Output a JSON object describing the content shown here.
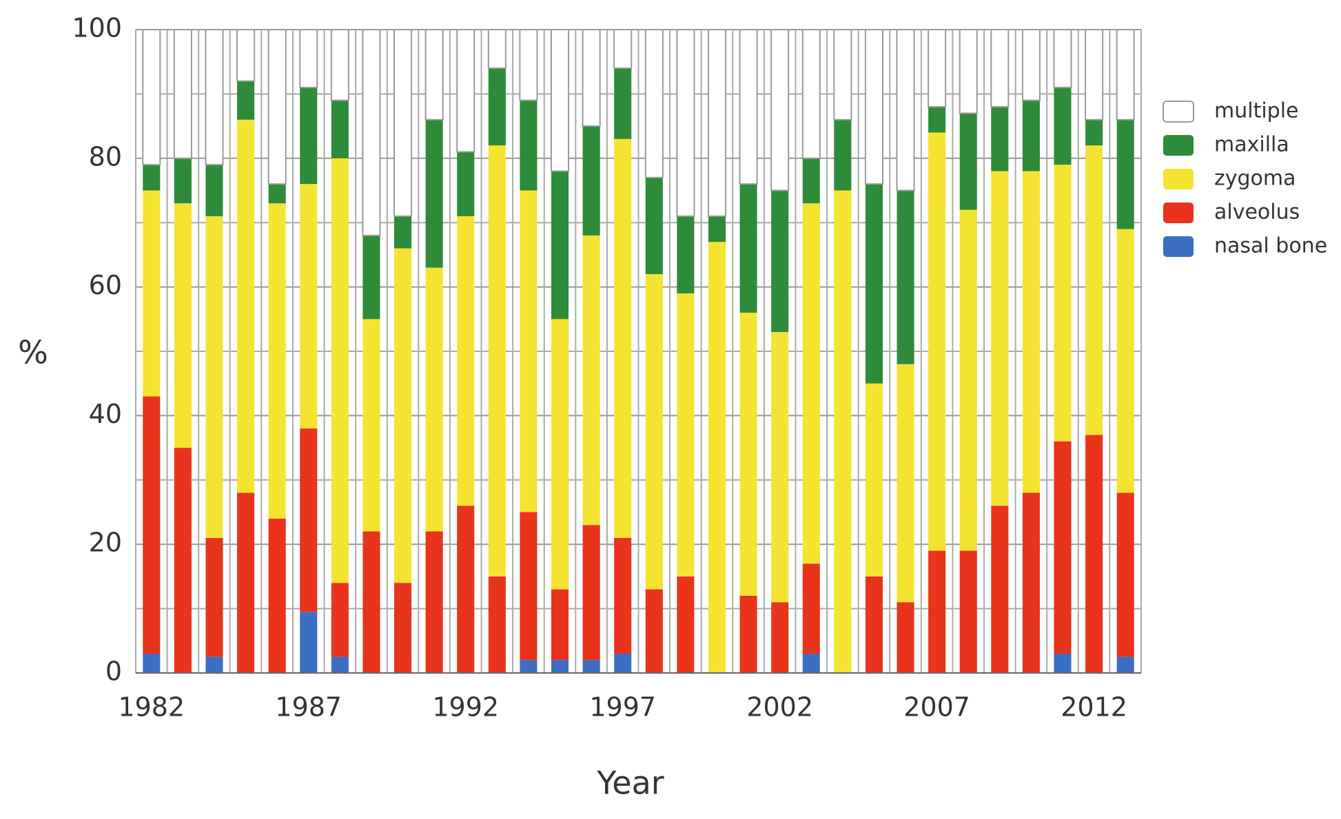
{
  "chart_data": {
    "type": "stacked_bar",
    "x_label": "Year",
    "y_label": "%",
    "categories": [
      "1982",
      null,
      null,
      null,
      null,
      "1987",
      null,
      null,
      null,
      null,
      "1992",
      null,
      null,
      null,
      null,
      "1997",
      null,
      null,
      null,
      null,
      "2002",
      null,
      null,
      null,
      null,
      "2007",
      null,
      null,
      null,
      null,
      "2012",
      null
    ],
    "series": [
      {
        "name": "nasal bone",
        "color": "#3a6fc4",
        "values": [
          3,
          0,
          2.5,
          0,
          0,
          9.5,
          2.5,
          0,
          0,
          0,
          0,
          0,
          2,
          2,
          2,
          3,
          0,
          0,
          0,
          0,
          0,
          3,
          0,
          0,
          0,
          0,
          0,
          0,
          0,
          3,
          0,
          2.5
        ]
      },
      {
        "name": "alveolus",
        "color": "#e8341c",
        "values": [
          40,
          35,
          18.5,
          28,
          24,
          28.5,
          11.5,
          22,
          14,
          22,
          26,
          15,
          23,
          11,
          21,
          18,
          13,
          15,
          0,
          12,
          11,
          14,
          0,
          15,
          11,
          19,
          19,
          26,
          28,
          33,
          37,
          25.5
        ]
      },
      {
        "name": "zygoma",
        "color": "#f5e332",
        "values": [
          32,
          38,
          50,
          58,
          49,
          38,
          66,
          33,
          52,
          41,
          45,
          67,
          50,
          42,
          45,
          62,
          49,
          44,
          67,
          44,
          42,
          56,
          75,
          30,
          37,
          65,
          53,
          52,
          50,
          43,
          45,
          41
        ]
      },
      {
        "name": "maxilla",
        "color": "#2e8b3a",
        "values": [
          4,
          7,
          8,
          6,
          3,
          15,
          9,
          13,
          5,
          23,
          10,
          12,
          14,
          23,
          17,
          11,
          15,
          12,
          4,
          20,
          22,
          7,
          11,
          31,
          27,
          4,
          15,
          10,
          11,
          12,
          4,
          17
        ]
      },
      {
        "name": "multiple",
        "color": "#ffffff",
        "values": [
          21,
          20,
          21,
          8,
          24,
          9,
          11,
          32,
          29,
          14,
          19,
          6,
          11,
          22,
          15,
          6,
          23,
          29,
          29,
          24,
          25,
          20,
          14,
          24,
          25,
          12,
          13,
          12,
          11,
          9,
          14,
          14
        ]
      }
    ],
    "ylim": [
      0,
      100
    ],
    "yticks": [
      0,
      20,
      40,
      60,
      80,
      100
    ],
    "yminor": [
      10,
      30,
      50,
      70,
      90
    ],
    "grid": true,
    "legend": "right"
  }
}
